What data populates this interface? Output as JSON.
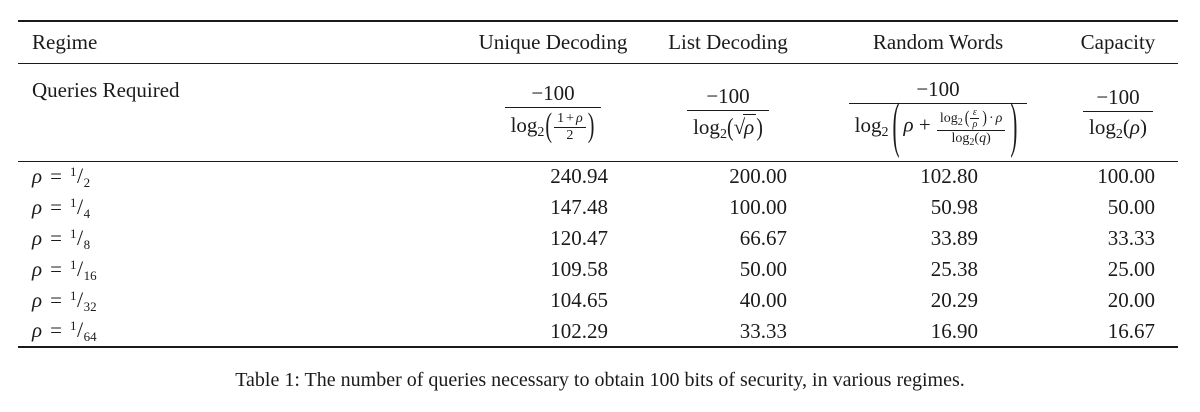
{
  "header": {
    "regime": "Regime",
    "columns": [
      "Unique Decoding",
      "List Decoding",
      "Random Words",
      "Capacity"
    ]
  },
  "queries_label": "Queries Required",
  "formulas": {
    "numerator": "−100"
  },
  "tok": {
    "log": "log",
    "two": "2",
    "one": "1",
    "plus": "+",
    "rho": "ρ",
    "eps": "ε",
    "q": "q",
    "cdot": "·",
    "sqrt": "√",
    "lp": "(",
    "rp": ")",
    "eq": "=",
    "slash": "/"
  },
  "rows": [
    {
      "num": "1",
      "den": "2",
      "values": [
        "240.94",
        "200.00",
        "102.80",
        "100.00"
      ]
    },
    {
      "num": "1",
      "den": "4",
      "values": [
        "147.48",
        "100.00",
        "50.98",
        "50.00"
      ]
    },
    {
      "num": "1",
      "den": "8",
      "values": [
        "120.47",
        "66.67",
        "33.89",
        "33.33"
      ]
    },
    {
      "num": "1",
      "den": "16",
      "values": [
        "109.58",
        "50.00",
        "25.38",
        "25.00"
      ]
    },
    {
      "num": "1",
      "den": "32",
      "values": [
        "104.65",
        "40.00",
        "20.29",
        "20.00"
      ]
    },
    {
      "num": "1",
      "den": "64",
      "values": [
        "102.29",
        "33.33",
        "16.90",
        "16.67"
      ]
    }
  ],
  "caption": "Table 1: The number of queries necessary to obtain 100 bits of security, in various regimes."
}
